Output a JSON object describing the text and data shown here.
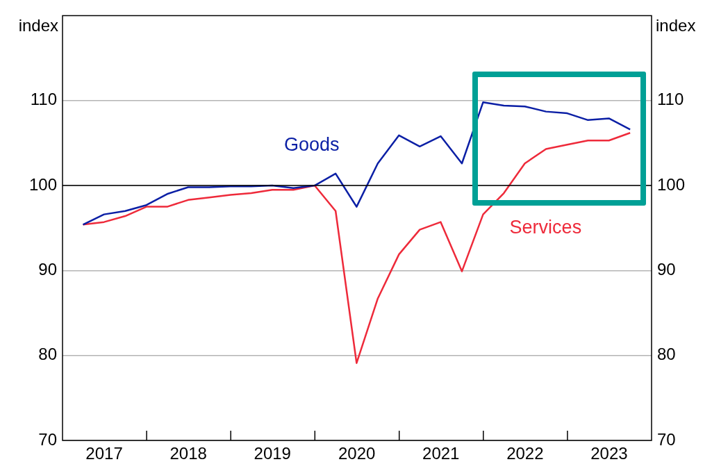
{
  "chart_data": {
    "type": "line",
    "ylabel": "index",
    "y2label": "index",
    "x": [
      "2017-03-31",
      "2017-06-30",
      "2017-09-30",
      "2017-12-31",
      "2018-03-31",
      "2018-06-30",
      "2018-09-30",
      "2018-12-31",
      "2019-03-31",
      "2019-06-30",
      "2019-09-30",
      "2019-12-31",
      "2020-03-31",
      "2020-06-30",
      "2020-09-30",
      "2020-12-31",
      "2021-03-31",
      "2021-06-30",
      "2021-09-30",
      "2021-12-31",
      "2022-03-31",
      "2022-06-30",
      "2022-09-30",
      "2022-12-31",
      "2023-03-31",
      "2023-06-30",
      "2023-09-30"
    ],
    "series": [
      {
        "name": "Goods",
        "color": "#0b1fa5",
        "values": [
          95.4,
          96.6,
          97.0,
          97.7,
          99.0,
          99.8,
          99.8,
          99.9,
          99.9,
          100.0,
          99.7,
          100.0,
          101.4,
          97.5,
          102.6,
          105.9,
          104.6,
          105.8,
          102.6,
          109.8,
          109.4,
          109.3,
          108.7,
          108.5,
          107.7,
          107.9,
          106.6
        ]
      },
      {
        "name": "Services",
        "color": "#ee2a3a",
        "values": [
          95.4,
          95.7,
          96.4,
          97.5,
          97.5,
          98.3,
          98.6,
          98.9,
          99.1,
          99.5,
          99.5,
          100.0,
          97.0,
          79.1,
          86.7,
          91.9,
          94.8,
          95.7,
          89.9,
          96.6,
          99.1,
          102.6,
          104.3,
          104.8,
          105.3,
          105.3,
          106.2
        ]
      }
    ],
    "xlim": [
      "2017-01-01",
      "2024-01-01"
    ],
    "xticks": [
      {
        "value": "2017-07-01",
        "label": "2017"
      },
      {
        "value": "2018-01-01",
        "label": null
      },
      {
        "value": "2018-07-01",
        "label": "2018"
      },
      {
        "value": "2019-01-01",
        "label": null
      },
      {
        "value": "2019-07-01",
        "label": "2019"
      },
      {
        "value": "2020-01-01",
        "label": null
      },
      {
        "value": "2020-07-01",
        "label": "2020"
      },
      {
        "value": "2021-01-01",
        "label": null
      },
      {
        "value": "2021-07-01",
        "label": "2021"
      },
      {
        "value": "2022-01-01",
        "label": null
      },
      {
        "value": "2022-07-01",
        "label": "2022"
      },
      {
        "value": "2023-01-01",
        "label": null
      },
      {
        "value": "2023-07-01",
        "label": "2023"
      }
    ],
    "ylim": [
      70,
      120
    ],
    "yticks": [
      70,
      80,
      90,
      100,
      110
    ],
    "y2lim": [
      70,
      120
    ],
    "y2ticks": [
      70,
      80,
      90,
      100,
      110
    ],
    "ref_lines": [
      {
        "axis": "y",
        "value": 100,
        "color": "#000000"
      }
    ],
    "grid": "y",
    "legend": false,
    "marker": "none",
    "line_style": "solid"
  }
}
